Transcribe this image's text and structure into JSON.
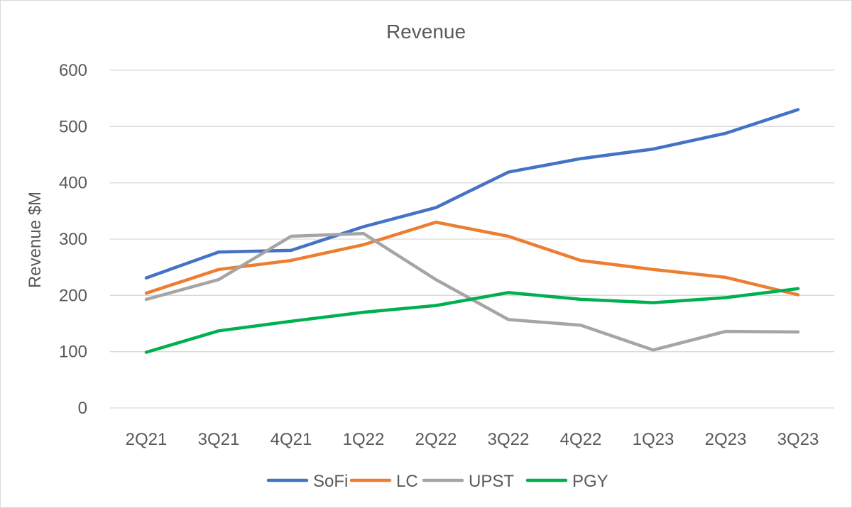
{
  "chart_data": {
    "type": "line",
    "title": "Revenue",
    "xlabel": "",
    "ylabel": "Revenue $M",
    "ylim": [
      0,
      600
    ],
    "yticks": [
      0,
      100,
      200,
      300,
      400,
      500,
      600
    ],
    "grid": true,
    "legend_position": "bottom",
    "categories": [
      "2Q21",
      "3Q21",
      "4Q21",
      "1Q22",
      "2Q22",
      "3Q22",
      "4Q22",
      "1Q23",
      "2Q23",
      "3Q23"
    ],
    "series": [
      {
        "name": "SoFi",
        "color": "#4472c4",
        "values": [
          231,
          277,
          280,
          322,
          356,
          419,
          443,
          460,
          488,
          530
        ]
      },
      {
        "name": "LC",
        "color": "#ed7d31",
        "values": [
          204,
          246,
          262,
          290,
          330,
          305,
          262,
          246,
          232,
          201
        ]
      },
      {
        "name": "UPST",
        "color": "#a5a5a5",
        "values": [
          193,
          228,
          305,
          310,
          228,
          157,
          147,
          103,
          136,
          135
        ]
      },
      {
        "name": "PGY",
        "color": "#00b050",
        "values": [
          99,
          137,
          154,
          170,
          182,
          205,
          193,
          187,
          196,
          212
        ]
      }
    ]
  }
}
